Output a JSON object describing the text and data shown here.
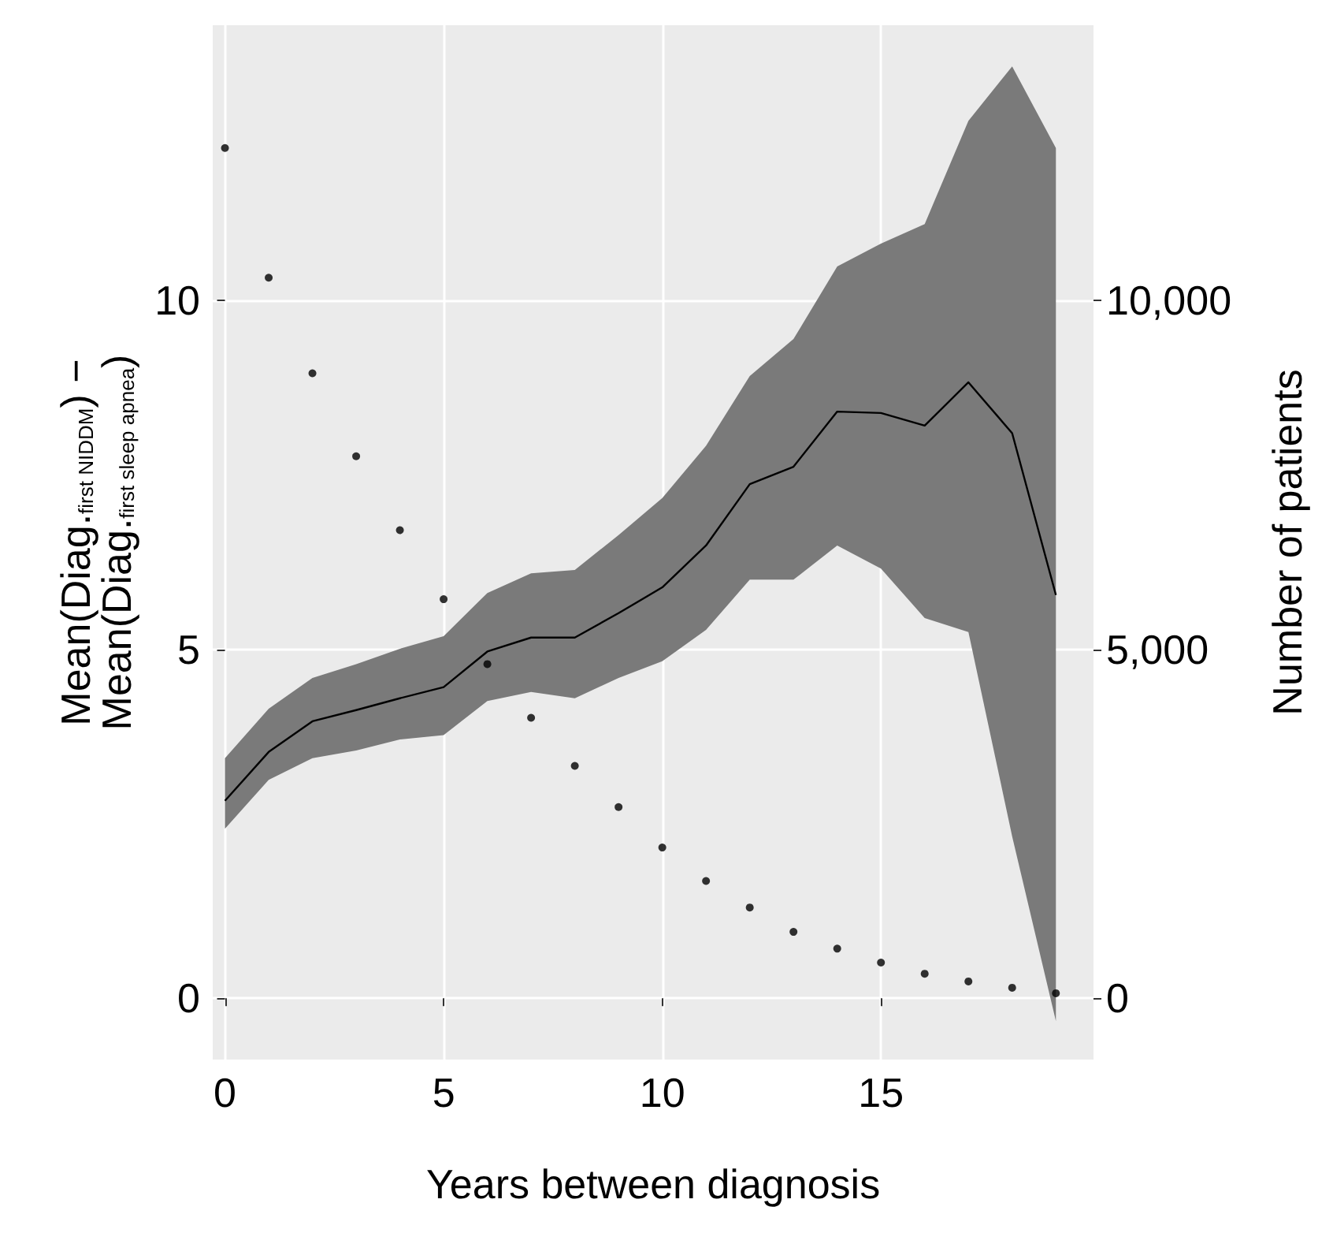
{
  "chart_data": {
    "type": "line",
    "xlabel": "Years between diagnosis",
    "ylabel": "Mean(Diag.$_{first NIDDM}$) −\nMean(Diag.$_{first sleep apnea}$)",
    "y2label": "Number of patients",
    "x": [
      0,
      1,
      2,
      3,
      4,
      5,
      6,
      7,
      8,
      9,
      10,
      11,
      12,
      13,
      14,
      15,
      16,
      17,
      18,
      19
    ],
    "xlim": [
      -0.28,
      19.86
    ],
    "xticks": [
      0,
      5,
      10,
      15
    ],
    "ylim": [
      -0.88,
      13.95
    ],
    "yticks": [
      0,
      5,
      10
    ],
    "y2lim": [
      -880,
      13950
    ],
    "y2ticks": [
      {
        "value": 0,
        "label": "0"
      },
      {
        "value": 5000,
        "label": "5,000"
      },
      {
        "value": 10000,
        "label": "10,000"
      }
    ],
    "grid": true,
    "series": [
      {
        "color": "#000000",
        "marker": "none",
        "values": [
          2.83,
          3.53,
          3.97,
          4.13,
          4.3,
          4.46,
          4.97,
          5.17,
          5.17,
          5.52,
          5.89,
          6.49,
          7.37,
          7.62,
          8.41,
          8.39,
          8.21,
          8.83,
          8.1,
          5.78
        ],
        "lower": [
          2.43,
          3.13,
          3.44,
          3.55,
          3.71,
          3.77,
          4.26,
          4.39,
          4.3,
          4.59,
          4.83,
          5.28,
          6.0,
          6.0,
          6.49,
          6.16,
          5.45,
          5.25,
          2.32,
          -0.33
        ],
        "upper": [
          3.44,
          4.15,
          4.59,
          4.79,
          5.01,
          5.19,
          5.81,
          6.09,
          6.14,
          6.64,
          7.17,
          7.92,
          8.92,
          9.45,
          10.49,
          10.82,
          11.1,
          12.58,
          13.36,
          12.19
        ]
      },
      {
        "type": "scatter",
        "axis": "y2",
        "color": "#000000",
        "marker": "circle",
        "values": [
          12190,
          10330,
          8960,
          7770,
          6710,
          5720,
          4790,
          4020,
          3330,
          2740,
          2160,
          1680,
          1300,
          950,
          710,
          510,
          350,
          240,
          150,
          70
        ]
      }
    ]
  }
}
